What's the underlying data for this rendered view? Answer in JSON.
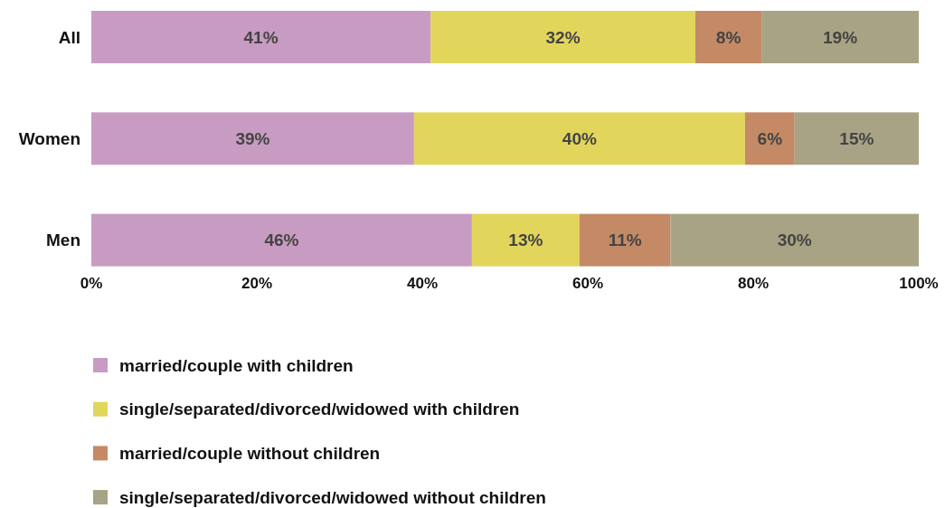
{
  "chart_data": {
    "type": "bar",
    "orientation": "horizontal",
    "stacked": true,
    "categories": [
      "All",
      "Women",
      "Men"
    ],
    "series": [
      {
        "name": "married/couple with children",
        "color": "#c89bc2",
        "values": [
          41,
          39,
          46
        ],
        "value_labels": [
          "41%",
          "39%",
          "46%"
        ]
      },
      {
        "name": "single/separated/divorced/widowed with children",
        "color": "#e2d55c",
        "values": [
          32,
          40,
          13
        ],
        "value_labels": [
          "32%",
          "40%",
          "13%"
        ]
      },
      {
        "name": "married/couple without children",
        "color": "#c38a65",
        "values": [
          8,
          6,
          11
        ],
        "value_labels": [
          "8%",
          "6%",
          "11%"
        ]
      },
      {
        "name": "single/separated/divorced/widowed without children",
        "color": "#a8a384",
        "values": [
          19,
          15,
          30
        ],
        "value_labels": [
          "19%",
          "15%",
          "30%"
        ]
      }
    ],
    "xlim": [
      0,
      100
    ],
    "xticks": [
      {
        "value": 0,
        "label": "0%"
      },
      {
        "value": 20,
        "label": "20%"
      },
      {
        "value": 40,
        "label": "40%"
      },
      {
        "value": 60,
        "label": "60%"
      },
      {
        "value": 80,
        "label": "80%"
      },
      {
        "value": 100,
        "label": "100%"
      }
    ],
    "grid": false,
    "legend": "bottom"
  }
}
